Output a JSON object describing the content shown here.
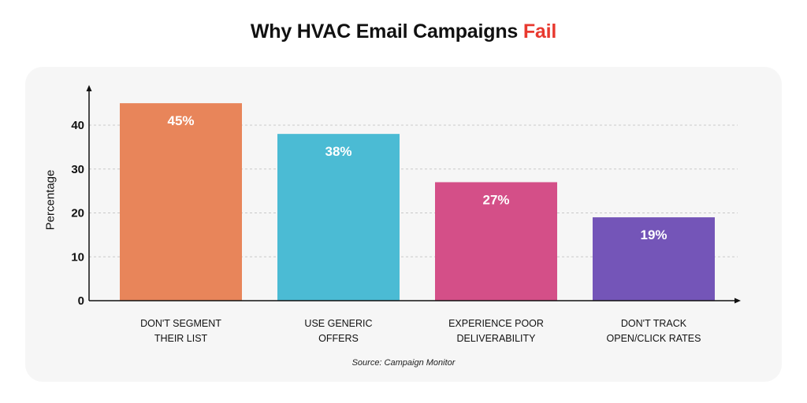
{
  "title": {
    "main": "Why HVAC Email Campaigns",
    "accent": "Fail"
  },
  "source": "Source: Campaign Monitor",
  "chart_data": {
    "type": "bar",
    "categories": [
      "DON'T SEGMENT\nTHEIR LIST",
      "USE GENERIC\nOFFERS",
      "EXPERIENCE POOR\nDELIVERABILITY",
      "DON'T TRACK\nOPEN/CLICK RATES"
    ],
    "values": [
      45,
      38,
      27,
      19
    ],
    "data_labels": [
      "45%",
      "38%",
      "27%",
      "19%"
    ],
    "colors": [
      "#e8855a",
      "#4bbbd4",
      "#d44f88",
      "#7455b8"
    ],
    "title": "Why HVAC Email Campaigns Fail",
    "xlabel": "",
    "ylabel": "Percentage",
    "ylim": [
      0,
      40
    ],
    "yticks": [
      0,
      10,
      20,
      30,
      40
    ],
    "grid": true,
    "legend": "none"
  }
}
